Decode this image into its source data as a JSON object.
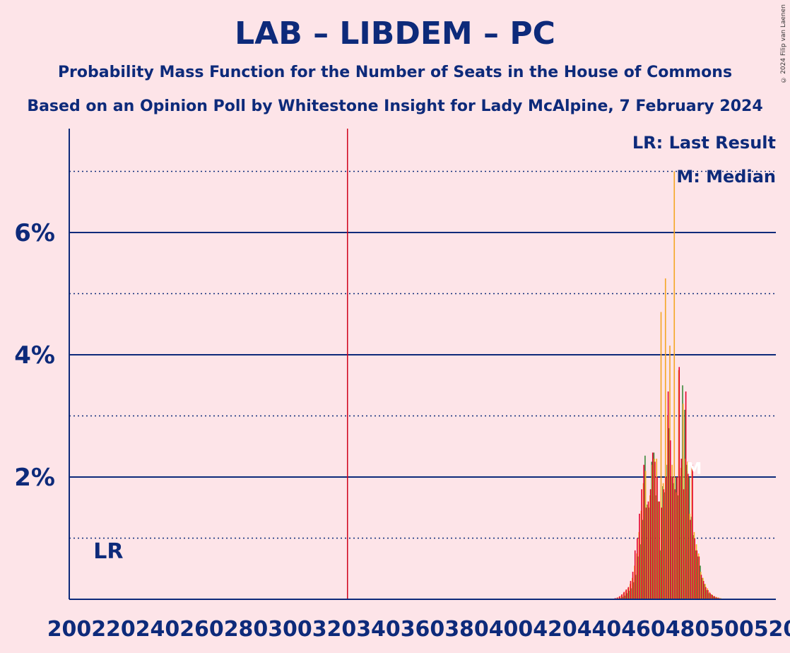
{
  "chart_data": {
    "type": "bar",
    "title": "LAB – LIBDEM – PC",
    "subtitle": "Probability Mass Function for the Number of Seats in the House of Commons",
    "subtitle2": "Based on an Opinion Poll by Whitestone Insight for Lady McAlpine, 7 February 2024",
    "copyright": "© 2024 Filip van Laenen",
    "xlim": [
      200,
      520
    ],
    "ylim": [
      0,
      7.7
    ],
    "x_ticks": [
      200,
      220,
      240,
      260,
      280,
      300,
      320,
      340,
      360,
      380,
      400,
      420,
      440,
      460,
      480,
      500,
      520
    ],
    "y_ticks_labeled": [
      {
        "value": 2,
        "label": "2%"
      },
      {
        "value": 4,
        "label": "4%"
      },
      {
        "value": 6,
        "label": "6%"
      }
    ],
    "y_grid_minor": [
      1,
      3,
      5,
      7
    ],
    "majority_line": 326,
    "last_result": {
      "x": 202,
      "label": "LR"
    },
    "median": {
      "x": 482,
      "label": "M"
    },
    "legend": {
      "lr": "LR: Last Result",
      "m": "M: Median",
      "placement": "top-right"
    },
    "colors": {
      "red": "#e4002b",
      "orange": "#f5a623",
      "green": "#3a8a3a",
      "line": "#0d2a7a",
      "majority": "#d0021b"
    },
    "values": {
      "x": [
        448,
        449,
        450,
        451,
        452,
        453,
        454,
        455,
        456,
        457,
        458,
        459,
        460,
        461,
        462,
        463,
        464,
        465,
        466,
        467,
        468,
        469,
        470,
        471,
        472,
        473,
        474,
        475,
        476,
        477,
        478,
        479,
        480,
        481,
        482,
        483,
        484,
        485,
        486,
        487,
        488,
        489,
        490,
        491,
        492,
        493,
        494,
        495,
        496,
        497,
        498,
        499,
        500,
        501,
        502,
        503,
        504,
        505,
        506,
        507,
        508,
        509,
        510,
        511,
        512
      ],
      "red": [
        0.02,
        0.03,
        0.05,
        0.08,
        0.12,
        0.16,
        0.2,
        0.3,
        0.45,
        0.8,
        1.0,
        1.4,
        1.8,
        2.2,
        1.5,
        1.6,
        1.8,
        2.4,
        2.25,
        2.0,
        1.6,
        1.5,
        1.8,
        2.0,
        3.4,
        2.6,
        2.0,
        1.8,
        2.0,
        3.8,
        2.3,
        1.8,
        3.4,
        2.1,
        1.3,
        2.2,
        1.0,
        0.8,
        0.7,
        0.4,
        0.3,
        0.2,
        0.15,
        0.1,
        0.07,
        0.05,
        0.03,
        0.02,
        0.01,
        0.01,
        0.01,
        0.01,
        0,
        0,
        0,
        0,
        0,
        0,
        0,
        0,
        0,
        0,
        0,
        0,
        0
      ],
      "orange": [
        0.02,
        0.04,
        0.06,
        0.1,
        0.14,
        0.18,
        0.25,
        0.35,
        0.55,
        0.75,
        1.1,
        1.45,
        1.9,
        2.1,
        1.55,
        1.7,
        2.2,
        2.3,
        2.3,
        1.6,
        4.7,
        1.9,
        5.25,
        3.0,
        4.15,
        2.2,
        7.0,
        1.75,
        3.75,
        2.15,
        3.2,
        2.3,
        2.25,
        1.4,
        2.2,
        1.1,
        0.9,
        0.75,
        0.45,
        0.35,
        0.25,
        0.18,
        0.12,
        0.08,
        0.05,
        0.04,
        0.03,
        0.02,
        0.01,
        0.01,
        0.01,
        0.01,
        0,
        0,
        0,
        0,
        0,
        0,
        0,
        0,
        0,
        0,
        0,
        0,
        0
      ],
      "green": [
        0.01,
        0.02,
        0.04,
        0.06,
        0.1,
        0.14,
        0.18,
        0.28,
        0.4,
        0.7,
        0.9,
        1.3,
        2.35,
        1.55,
        1.5,
        2.25,
        2.4,
        1.7,
        1.6,
        0.8,
        1.85,
        1.75,
        2.2,
        2.8,
        2.0,
        1.9,
        2.0,
        1.7,
        2.0,
        3.5,
        3.1,
        2.2,
        2.0,
        1.35,
        1.05,
        0.8,
        0.7,
        0.55,
        0.35,
        0.25,
        0.15,
        0.1,
        0.08,
        0.05,
        0.03,
        0.02,
        0.01,
        0.01,
        0.01,
        0.01,
        0,
        0,
        0,
        0,
        0,
        0,
        0,
        0,
        0,
        0,
        0,
        0,
        0,
        0,
        0
      ]
    }
  }
}
